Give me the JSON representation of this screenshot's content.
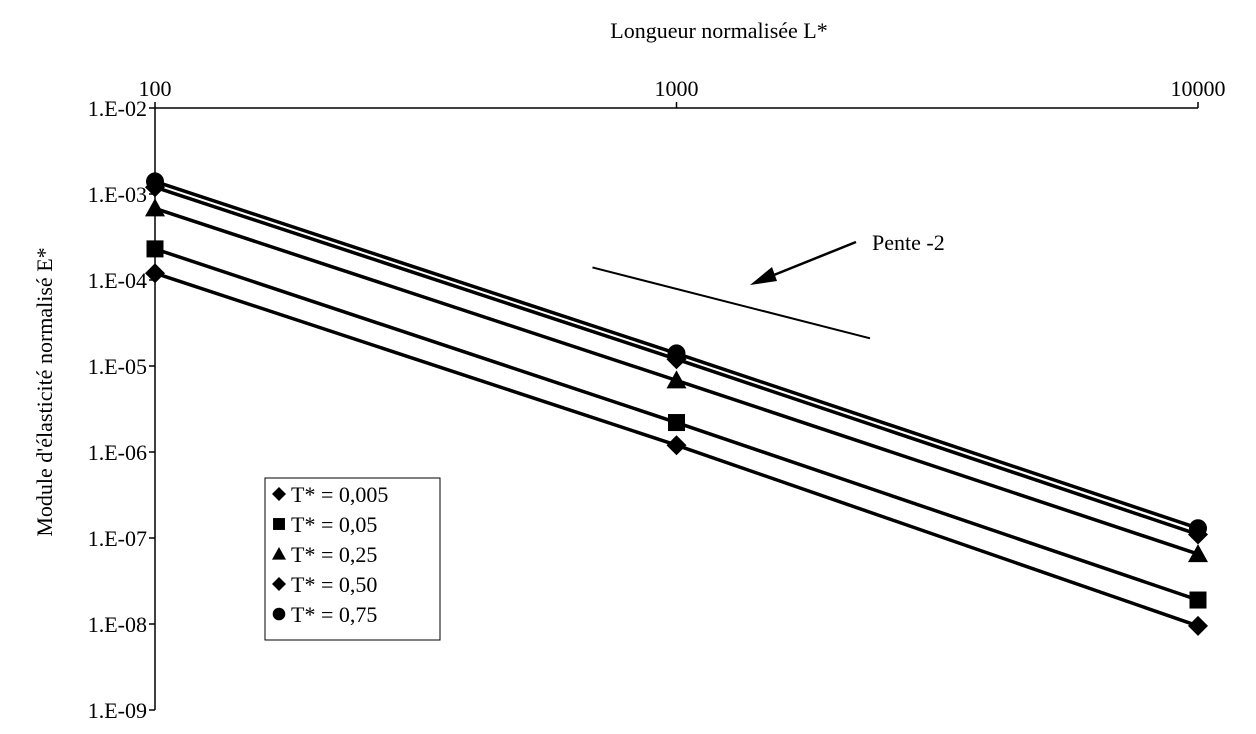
{
  "chart_data": {
    "type": "scatter",
    "xlabel": "Longueur normalisée L*",
    "ylabel": "Module d'élasticité normalisé E*",
    "x_scale": "log",
    "y_scale": "log",
    "xlim": [
      100,
      10000
    ],
    "ylim": [
      1e-09,
      0.01
    ],
    "x_ticks": [
      100,
      1000,
      10000
    ],
    "x_tick_labels": [
      "100",
      "1000",
      "10000"
    ],
    "y_ticks": [
      0.01,
      0.001,
      0.0001,
      1e-05,
      1e-06,
      1e-07,
      1e-08,
      1e-09
    ],
    "y_tick_labels": [
      "1.E-02",
      "1.E-03",
      "1.E-04",
      "1.E-05",
      "1.E-06",
      "1.E-07",
      "1.E-08",
      "1.E-09"
    ],
    "x_axis_position": "top",
    "grid": false,
    "legend_position": "bottom-left",
    "series": [
      {
        "name": "T* = 0,005",
        "marker": "diamond",
        "x": [
          100,
          1000,
          10000
        ],
        "y": [
          0.00012,
          1.2e-06,
          9.5e-09
        ]
      },
      {
        "name": "T* = 0,05",
        "marker": "square",
        "x": [
          100,
          1000,
          10000
        ],
        "y": [
          0.00023,
          2.2e-06,
          1.9e-08
        ]
      },
      {
        "name": "T* = 0,25",
        "marker": "triangle",
        "x": [
          100,
          1000,
          10000
        ],
        "y": [
          0.00068,
          6.8e-06,
          6.5e-08
        ]
      },
      {
        "name": "T* = 0,50",
        "marker": "diamond",
        "x": [
          100,
          1000,
          10000
        ],
        "y": [
          0.0012,
          1.2e-05,
          1.1e-07
        ]
      },
      {
        "name": "T* = 0,75",
        "marker": "circle",
        "x": [
          100,
          1000,
          10000
        ],
        "y": [
          0.0014,
          1.4e-05,
          1.3e-07
        ]
      }
    ],
    "annotations": [
      {
        "text": "Pente -2",
        "slope_line": {
          "x": [
            690,
            2350
          ],
          "y": [
            0.00014,
            2.1e-05
          ]
        }
      }
    ]
  }
}
